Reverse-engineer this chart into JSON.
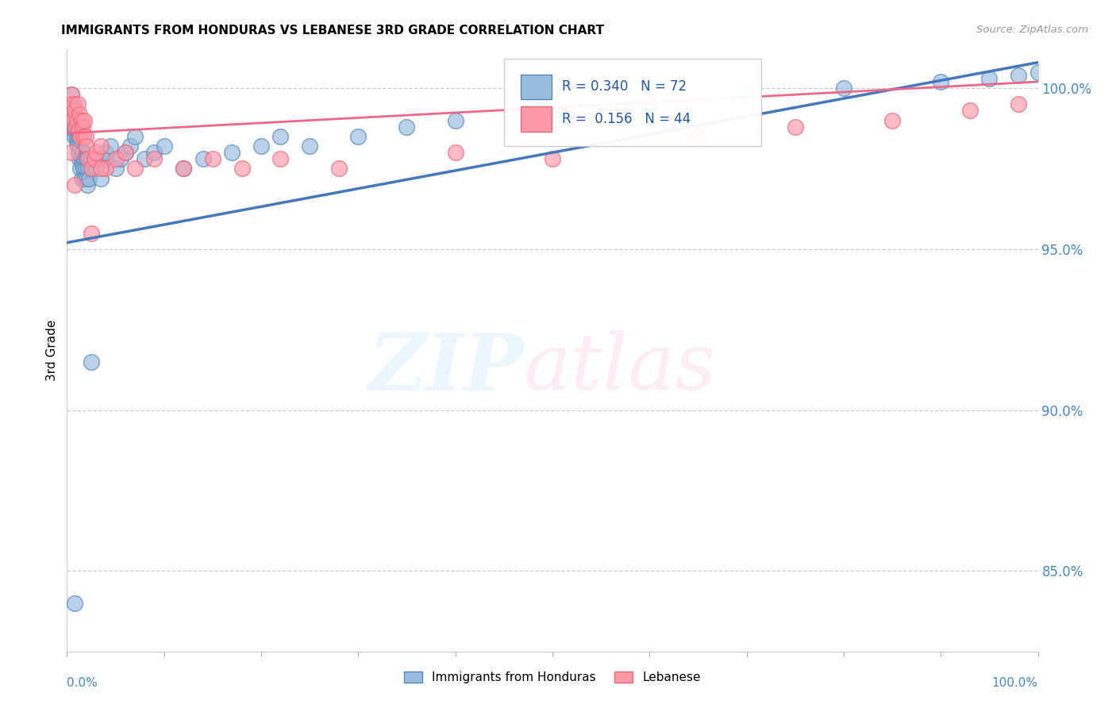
{
  "title": "IMMIGRANTS FROM HONDURAS VS LEBANESE 3RD GRADE CORRELATION CHART",
  "source": "Source: ZipAtlas.com",
  "ylabel": "3rd Grade",
  "xlim": [
    0,
    100
  ],
  "ylim": [
    82.5,
    101.2
  ],
  "yticks": [
    85,
    90,
    95,
    100
  ],
  "ytick_labels": [
    "85.0%",
    "90.0%",
    "95.0%",
    "100.0%"
  ],
  "watermark_zip": "ZIP",
  "watermark_atlas": "atlas",
  "legend_label1": "Immigrants from Honduras",
  "legend_label2": "Lebanese",
  "R1": 0.34,
  "N1": 72,
  "R2": 0.156,
  "N2": 44,
  "color_blue": "#99BBDD",
  "color_pink": "#FF99AA",
  "color_blue_edge": "#5588BB",
  "color_pink_edge": "#EE6677",
  "color_blue_line": "#4477BB",
  "color_pink_line": "#EE6688",
  "blue_trend": [
    95.2,
    100.8
  ],
  "pink_trend": [
    98.6,
    100.2
  ],
  "blue_x": [
    0.3,
    0.4,
    0.5,
    0.5,
    0.6,
    0.6,
    0.7,
    0.7,
    0.8,
    0.8,
    0.9,
    0.9,
    1.0,
    1.0,
    1.0,
    1.1,
    1.1,
    1.2,
    1.2,
    1.3,
    1.3,
    1.4,
    1.4,
    1.5,
    1.5,
    1.6,
    1.6,
    1.7,
    1.8,
    1.8,
    1.9,
    2.0,
    2.0,
    2.1,
    2.2,
    2.3,
    2.5,
    2.6,
    2.8,
    3.0,
    3.2,
    3.5,
    3.8,
    4.0,
    4.5,
    5.0,
    5.5,
    6.0,
    6.5,
    7.0,
    8.0,
    9.0,
    10.0,
    12.0,
    14.0,
    17.0,
    20.0,
    22.0,
    25.0,
    30.0,
    35.0,
    40.0,
    50.0,
    60.0,
    70.0,
    80.0,
    90.0,
    95.0,
    98.0,
    100.0,
    0.8,
    2.5
  ],
  "blue_y": [
    99.5,
    99.3,
    99.0,
    99.8,
    99.2,
    98.8,
    99.4,
    99.0,
    98.7,
    98.5,
    99.1,
    98.9,
    99.0,
    98.5,
    98.3,
    98.8,
    98.2,
    98.6,
    98.0,
    97.8,
    98.5,
    97.5,
    98.2,
    97.8,
    97.2,
    97.6,
    98.0,
    97.5,
    97.8,
    97.2,
    97.5,
    97.2,
    97.8,
    97.0,
    97.5,
    97.2,
    97.8,
    97.5,
    97.8,
    97.5,
    97.8,
    97.2,
    97.8,
    98.0,
    98.2,
    97.5,
    97.8,
    98.0,
    98.2,
    98.5,
    97.8,
    98.0,
    98.2,
    97.5,
    97.8,
    98.0,
    98.2,
    98.5,
    98.2,
    98.5,
    98.8,
    99.0,
    99.2,
    99.5,
    99.8,
    100.0,
    100.2,
    100.3,
    100.4,
    100.5,
    84.0,
    91.5
  ],
  "pink_x": [
    0.3,
    0.4,
    0.5,
    0.6,
    0.7,
    0.8,
    0.9,
    1.0,
    1.1,
    1.2,
    1.3,
    1.4,
    1.5,
    1.6,
    1.7,
    1.8,
    1.9,
    2.0,
    2.2,
    2.5,
    2.8,
    3.0,
    3.5,
    4.0,
    5.0,
    6.0,
    7.0,
    9.0,
    12.0,
    15.0,
    18.0,
    22.0,
    28.0,
    40.0,
    50.0,
    65.0,
    75.0,
    85.0,
    93.0,
    98.0,
    2.5,
    3.5,
    0.5,
    0.8
  ],
  "pink_y": [
    99.2,
    99.5,
    99.8,
    99.0,
    99.5,
    99.3,
    98.8,
    99.0,
    99.5,
    98.7,
    99.2,
    98.5,
    99.0,
    98.8,
    98.5,
    99.0,
    98.5,
    98.2,
    97.8,
    97.5,
    97.8,
    98.0,
    98.2,
    97.5,
    97.8,
    98.0,
    97.5,
    97.8,
    97.5,
    97.8,
    97.5,
    97.8,
    97.5,
    98.0,
    97.8,
    98.5,
    98.8,
    99.0,
    99.3,
    99.5,
    95.5,
    97.5,
    98.0,
    97.0
  ]
}
